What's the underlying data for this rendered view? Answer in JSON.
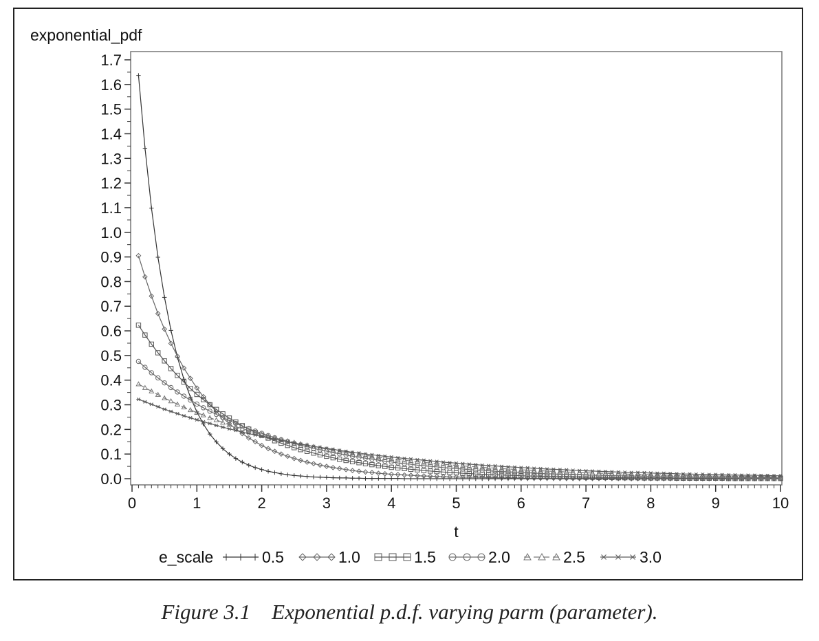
{
  "chart_data": {
    "type": "line",
    "ylabel": "exponential_pdf",
    "xlabel": "t",
    "xlim": [
      0,
      10
    ],
    "ylim": [
      0.0,
      1.7
    ],
    "x_ticks": [
      "0",
      "1",
      "2",
      "3",
      "4",
      "5",
      "6",
      "7",
      "8",
      "9",
      "10"
    ],
    "y_ticks": [
      "0.0",
      "0.1",
      "0.2",
      "0.3",
      "0.4",
      "0.5",
      "0.6",
      "0.7",
      "0.8",
      "0.9",
      "1.0",
      "1.1",
      "1.2",
      "1.3",
      "1.4",
      "1.5",
      "1.6",
      "1.7"
    ],
    "grid": false,
    "legend_title": "e_scale",
    "legend_position": "bottom",
    "x": [
      0.1,
      0.2,
      0.3,
      0.4,
      0.5,
      0.6,
      0.7,
      0.8,
      0.9,
      1.0,
      1.1,
      1.2,
      1.3,
      1.4,
      1.5,
      1.6,
      1.7,
      1.8,
      1.9,
      2.0,
      2.1,
      2.2,
      2.3,
      2.4,
      2.5,
      2.6,
      2.7,
      2.8,
      2.9,
      3.0,
      3.1,
      3.2,
      3.3,
      3.4,
      3.5,
      3.6,
      3.7,
      3.8,
      3.9,
      4.0,
      4.1,
      4.2,
      4.3,
      4.4,
      4.5,
      4.6,
      4.7,
      4.8,
      4.9,
      5.0,
      5.1,
      5.2,
      5.3,
      5.4,
      5.5,
      5.6,
      5.7,
      5.8,
      5.9,
      6.0,
      6.1,
      6.2,
      6.3,
      6.4,
      6.5,
      6.6,
      6.7,
      6.8,
      6.9,
      7.0,
      7.1,
      7.2,
      7.3,
      7.4,
      7.5,
      7.6,
      7.7,
      7.8,
      7.9,
      8.0,
      8.1,
      8.2,
      8.3,
      8.4,
      8.5,
      8.6,
      8.7,
      8.8,
      8.9,
      9.0,
      9.1,
      9.2,
      9.3,
      9.4,
      9.5,
      9.6,
      9.7,
      9.8,
      9.9,
      10.0
    ],
    "series": [
      {
        "name": "0.5",
        "marker": "plus",
        "color": "#333333",
        "values": [
          1.637,
          1.341,
          1.098,
          0.899,
          0.736,
          0.602,
          0.493,
          0.404,
          0.331,
          0.271,
          0.222,
          0.181,
          0.149,
          0.122,
          0.1,
          0.082,
          0.067,
          0.055,
          0.045,
          0.037,
          0.03,
          0.025,
          0.02,
          0.016,
          0.013,
          0.011,
          0.009,
          0.007,
          0.006,
          0.005,
          0.004,
          0.003,
          0.003,
          0.002,
          0.002,
          0.001,
          0.001,
          0.001,
          0.001,
          0.001,
          0.001,
          0.0,
          0.0,
          0.0,
          0.0,
          0.0,
          0.0,
          0.0,
          0.0,
          0.0,
          0.0,
          0.0,
          0.0,
          0.0,
          0.0,
          0.0,
          0.0,
          0.0,
          0.0,
          0.0,
          0.0,
          0.0,
          0.0,
          0.0,
          0.0,
          0.0,
          0.0,
          0.0,
          0.0,
          0.0,
          0.0,
          0.0,
          0.0,
          0.0,
          0.0,
          0.0,
          0.0,
          0.0,
          0.0,
          0.0,
          0.0,
          0.0,
          0.0,
          0.0,
          0.0,
          0.0,
          0.0,
          0.0,
          0.0,
          0.0,
          0.0,
          0.0,
          0.0,
          0.0,
          0.0,
          0.0,
          0.0,
          0.0,
          0.0,
          0.0
        ]
      },
      {
        "name": "1.0",
        "marker": "diamond",
        "color": "#666666",
        "values": [
          0.905,
          0.819,
          0.741,
          0.67,
          0.607,
          0.549,
          0.497,
          0.449,
          0.407,
          0.368,
          0.333,
          0.301,
          0.273,
          0.247,
          0.223,
          0.202,
          0.183,
          0.165,
          0.15,
          0.135,
          0.122,
          0.111,
          0.1,
          0.091,
          0.082,
          0.074,
          0.067,
          0.061,
          0.055,
          0.05,
          0.045,
          0.041,
          0.037,
          0.033,
          0.03,
          0.027,
          0.025,
          0.022,
          0.02,
          0.018,
          0.017,
          0.015,
          0.014,
          0.012,
          0.011,
          0.01,
          0.009,
          0.008,
          0.007,
          0.007,
          0.006,
          0.006,
          0.005,
          0.005,
          0.004,
          0.004,
          0.003,
          0.003,
          0.003,
          0.002,
          0.002,
          0.002,
          0.002,
          0.002,
          0.002,
          0.001,
          0.001,
          0.001,
          0.001,
          0.001,
          0.001,
          0.001,
          0.001,
          0.001,
          0.001,
          0.001,
          0.0,
          0.0,
          0.0,
          0.0,
          0.0,
          0.0,
          0.0,
          0.0,
          0.0,
          0.0,
          0.0,
          0.0,
          0.0,
          0.0,
          0.0,
          0.0,
          0.0,
          0.0,
          0.0,
          0.0,
          0.0,
          0.0,
          0.0,
          0.0
        ]
      },
      {
        "name": "1.5",
        "marker": "square",
        "color": "#555555",
        "values": [
          0.623,
          0.583,
          0.546,
          0.511,
          0.478,
          0.447,
          0.419,
          0.392,
          0.366,
          0.342,
          0.321,
          0.3,
          0.281,
          0.263,
          0.246,
          0.23,
          0.215,
          0.201,
          0.188,
          0.176,
          0.165,
          0.154,
          0.144,
          0.135,
          0.126,
          0.118,
          0.111,
          0.104,
          0.097,
          0.091,
          0.085,
          0.079,
          0.074,
          0.069,
          0.065,
          0.061,
          0.057,
          0.053,
          0.05,
          0.046,
          0.044,
          0.041,
          0.038,
          0.036,
          0.033,
          0.031,
          0.029,
          0.027,
          0.025,
          0.024,
          0.022,
          0.021,
          0.019,
          0.018,
          0.017,
          0.016,
          0.015,
          0.014,
          0.013,
          0.012,
          0.011,
          0.011,
          0.01,
          0.009,
          0.009,
          0.008,
          0.008,
          0.007,
          0.007,
          0.006,
          0.006,
          0.005,
          0.005,
          0.005,
          0.004,
          0.004,
          0.004,
          0.004,
          0.003,
          0.003,
          0.003,
          0.003,
          0.003,
          0.002,
          0.002,
          0.002,
          0.002,
          0.002,
          0.002,
          0.002,
          0.002,
          0.001,
          0.001,
          0.001,
          0.001,
          0.001,
          0.001,
          0.001,
          0.001,
          0.001
        ]
      },
      {
        "name": "2.0",
        "marker": "circle",
        "color": "#6a6a6a",
        "values": [
          0.476,
          0.452,
          0.43,
          0.409,
          0.389,
          0.37,
          0.352,
          0.335,
          0.319,
          0.303,
          0.288,
          0.274,
          0.261,
          0.248,
          0.236,
          0.225,
          0.214,
          0.203,
          0.193,
          0.184,
          0.175,
          0.166,
          0.158,
          0.151,
          0.143,
          0.136,
          0.13,
          0.123,
          0.117,
          0.112,
          0.106,
          0.101,
          0.096,
          0.091,
          0.087,
          0.083,
          0.079,
          0.075,
          0.071,
          0.068,
          0.064,
          0.061,
          0.058,
          0.055,
          0.053,
          0.05,
          0.048,
          0.045,
          0.043,
          0.041,
          0.039,
          0.037,
          0.035,
          0.034,
          0.032,
          0.03,
          0.029,
          0.028,
          0.026,
          0.025,
          0.024,
          0.023,
          0.021,
          0.02,
          0.019,
          0.018,
          0.018,
          0.017,
          0.016,
          0.015,
          0.014,
          0.014,
          0.013,
          0.012,
          0.012,
          0.011,
          0.011,
          0.01,
          0.01,
          0.009,
          0.009,
          0.008,
          0.008,
          0.007,
          0.007,
          0.007,
          0.006,
          0.006,
          0.006,
          0.006,
          0.005,
          0.005,
          0.005,
          0.005,
          0.004,
          0.004,
          0.004,
          0.004,
          0.004,
          0.003
        ]
      },
      {
        "name": "2.5",
        "marker": "triangle",
        "color": "#777777",
        "values": [
          0.384,
          0.369,
          0.355,
          0.341,
          0.327,
          0.315,
          0.302,
          0.29,
          0.279,
          0.268,
          0.258,
          0.247,
          0.238,
          0.228,
          0.219,
          0.211,
          0.203,
          0.195,
          0.187,
          0.18,
          0.173,
          0.166,
          0.159,
          0.153,
          0.147,
          0.141,
          0.136,
          0.13,
          0.125,
          0.12,
          0.116,
          0.111,
          0.107,
          0.103,
          0.099,
          0.095,
          0.091,
          0.087,
          0.084,
          0.081,
          0.078,
          0.075,
          0.072,
          0.069,
          0.066,
          0.064,
          0.061,
          0.059,
          0.056,
          0.054,
          0.052,
          0.05,
          0.048,
          0.046,
          0.044,
          0.043,
          0.041,
          0.039,
          0.038,
          0.036,
          0.035,
          0.034,
          0.032,
          0.031,
          0.03,
          0.029,
          0.027,
          0.026,
          0.025,
          0.024,
          0.023,
          0.022,
          0.022,
          0.021,
          0.02,
          0.019,
          0.018,
          0.018,
          0.017,
          0.016,
          0.016,
          0.015,
          0.014,
          0.014,
          0.013,
          0.013,
          0.012,
          0.012,
          0.011,
          0.011,
          0.011,
          0.01,
          0.01,
          0.009,
          0.009,
          0.009,
          0.008,
          0.008,
          0.008,
          0.007
        ]
      },
      {
        "name": "3.0",
        "marker": "asterisk",
        "color": "#5a5a5a",
        "values": [
          0.322,
          0.312,
          0.302,
          0.292,
          0.282,
          0.273,
          0.264,
          0.255,
          0.247,
          0.239,
          0.231,
          0.224,
          0.216,
          0.209,
          0.202,
          0.196,
          0.189,
          0.183,
          0.177,
          0.171,
          0.166,
          0.16,
          0.155,
          0.15,
          0.145,
          0.14,
          0.136,
          0.131,
          0.127,
          0.123,
          0.119,
          0.115,
          0.111,
          0.107,
          0.104,
          0.1,
          0.097,
          0.094,
          0.091,
          0.088,
          0.085,
          0.082,
          0.08,
          0.077,
          0.075,
          0.072,
          0.07,
          0.067,
          0.065,
          0.063,
          0.061,
          0.059,
          0.057,
          0.055,
          0.053,
          0.052,
          0.05,
          0.048,
          0.047,
          0.045,
          0.044,
          0.042,
          0.041,
          0.039,
          0.038,
          0.037,
          0.036,
          0.034,
          0.033,
          0.032,
          0.031,
          0.03,
          0.029,
          0.028,
          0.027,
          0.026,
          0.025,
          0.025,
          0.024,
          0.023,
          0.022,
          0.022,
          0.021,
          0.02,
          0.019,
          0.019,
          0.018,
          0.018,
          0.017,
          0.017,
          0.016,
          0.015,
          0.015,
          0.014,
          0.014,
          0.014,
          0.013,
          0.013,
          0.012,
          0.012
        ]
      }
    ]
  },
  "caption": {
    "text": "Figure 3.1    Exponential p.d.f. varying parm (parameter)."
  }
}
